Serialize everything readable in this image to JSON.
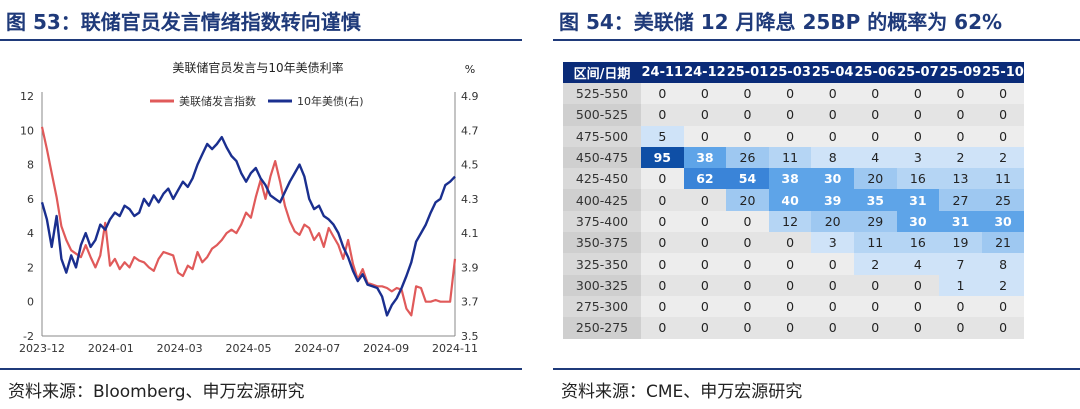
{
  "left": {
    "title": "图 53：联储官员发言情绪指数转向谨慎",
    "source": "资料来源：Bloomberg、申万宏源研究"
  },
  "right": {
    "title": "图 54：美联储 12 月降息 25BP 的概率为 62%",
    "source": "资料来源：CME、申万宏源研究"
  },
  "colors": {
    "title_blue": "#1f3a7a",
    "red_series": "#e05a5a",
    "blue_series": "#1a2f8f",
    "header_bg": "#0a2b78"
  },
  "chart_data": [
    {
      "type": "line",
      "title": "美联储官员发言与10年美债利率",
      "right_unit": "%",
      "x_ticks": [
        "2023-12",
        "2024-01",
        "2024-03",
        "2024-05",
        "2024-07",
        "2024-09",
        "2024-11"
      ],
      "ylim": [
        -2,
        12
      ],
      "y_ticks": [
        -2,
        0,
        2,
        4,
        6,
        8,
        10,
        12
      ],
      "y2lim": [
        3.5,
        4.9
      ],
      "y2_ticks": [
        "3.5",
        "3.7",
        "3.9",
        "4.1",
        "4.3",
        "4.5",
        "4.7",
        "4.9"
      ],
      "legend_position": "top",
      "series": [
        {
          "name": "美联储发言指数",
          "axis": "left",
          "color": "#e05a5a",
          "values": [
            10.2,
            8.9,
            7.5,
            6.1,
            4.4,
            3.6,
            3.0,
            2.8,
            2.6,
            3.3,
            2.6,
            2.0,
            2.7,
            4.6,
            2.1,
            2.5,
            1.9,
            2.3,
            2.0,
            2.6,
            2.4,
            2.3,
            2.0,
            1.8,
            2.5,
            2.9,
            2.8,
            2.7,
            1.7,
            1.5,
            2.1,
            1.9,
            2.9,
            2.3,
            2.6,
            3.1,
            3.3,
            3.6,
            4.0,
            4.2,
            4.0,
            4.5,
            5.2,
            4.9,
            6.1,
            7.1,
            6.0,
            7.3,
            8.2,
            7.0,
            5.6,
            4.7,
            4.1,
            3.9,
            4.5,
            4.3,
            3.6,
            4.0,
            3.2,
            4.3,
            3.8,
            3.3,
            2.5,
            3.6,
            2.2,
            1.3,
            1.9,
            1.1,
            1.0,
            0.9,
            0.9,
            0.8,
            0.6,
            0.8,
            0.7,
            -0.4,
            -0.8,
            0.9,
            0.8,
            0.0,
            0.0,
            0.1,
            0.0,
            0.0,
            0.0,
            2.5
          ]
        },
        {
          "name": "10年美债(右)",
          "axis": "right",
          "color": "#1a2f8f",
          "values": [
            4.28,
            4.18,
            4.02,
            4.2,
            3.95,
            3.87,
            3.97,
            3.9,
            4.03,
            4.1,
            4.02,
            4.06,
            4.15,
            4.12,
            4.18,
            4.22,
            4.2,
            4.26,
            4.24,
            4.2,
            4.22,
            4.3,
            4.26,
            4.32,
            4.28,
            4.33,
            4.36,
            4.3,
            4.35,
            4.4,
            4.37,
            4.42,
            4.5,
            4.56,
            4.62,
            4.59,
            4.62,
            4.66,
            4.6,
            4.55,
            4.52,
            4.45,
            4.4,
            4.45,
            4.48,
            4.42,
            4.38,
            4.32,
            4.3,
            4.28,
            4.34,
            4.4,
            4.45,
            4.5,
            4.43,
            4.3,
            4.24,
            4.26,
            4.2,
            4.18,
            4.15,
            4.1,
            4.02,
            3.96,
            3.88,
            3.82,
            3.86,
            3.8,
            3.79,
            3.78,
            3.73,
            3.62,
            3.68,
            3.72,
            3.78,
            3.85,
            3.93,
            4.05,
            4.1,
            4.15,
            4.22,
            4.28,
            4.3,
            4.38,
            4.4,
            4.43
          ]
        }
      ]
    },
    {
      "type": "table",
      "header_label": "区间/日期",
      "columns": [
        "24-11",
        "24-12",
        "25-01",
        "25-03",
        "25-04",
        "25-06",
        "25-07",
        "25-09",
        "25-10"
      ],
      "rows": [
        {
          "range": "525-550",
          "values": [
            0,
            0,
            0,
            0,
            0,
            0,
            0,
            0,
            0
          ]
        },
        {
          "range": "500-525",
          "values": [
            0,
            0,
            0,
            0,
            0,
            0,
            0,
            0,
            0
          ]
        },
        {
          "range": "475-500",
          "values": [
            5,
            0,
            0,
            0,
            0,
            0,
            0,
            0,
            0
          ]
        },
        {
          "range": "450-475",
          "values": [
            95,
            38,
            26,
            11,
            8,
            4,
            3,
            2,
            2
          ]
        },
        {
          "range": "425-450",
          "values": [
            0,
            62,
            54,
            38,
            30,
            20,
            16,
            13,
            11
          ]
        },
        {
          "range": "400-425",
          "values": [
            0,
            0,
            20,
            40,
            39,
            35,
            31,
            27,
            25
          ]
        },
        {
          "range": "375-400",
          "values": [
            0,
            0,
            0,
            12,
            20,
            29,
            30,
            31,
            30
          ]
        },
        {
          "range": "350-375",
          "values": [
            0,
            0,
            0,
            0,
            3,
            11,
            16,
            19,
            21
          ]
        },
        {
          "range": "325-350",
          "values": [
            0,
            0,
            0,
            0,
            0,
            2,
            4,
            7,
            8
          ]
        },
        {
          "range": "300-325",
          "values": [
            0,
            0,
            0,
            0,
            0,
            0,
            0,
            1,
            2
          ]
        },
        {
          "range": "275-300",
          "values": [
            0,
            0,
            0,
            0,
            0,
            0,
            0,
            0,
            0
          ]
        },
        {
          "range": "250-275",
          "values": [
            0,
            0,
            0,
            0,
            0,
            0,
            0,
            0,
            0
          ]
        }
      ]
    }
  ]
}
